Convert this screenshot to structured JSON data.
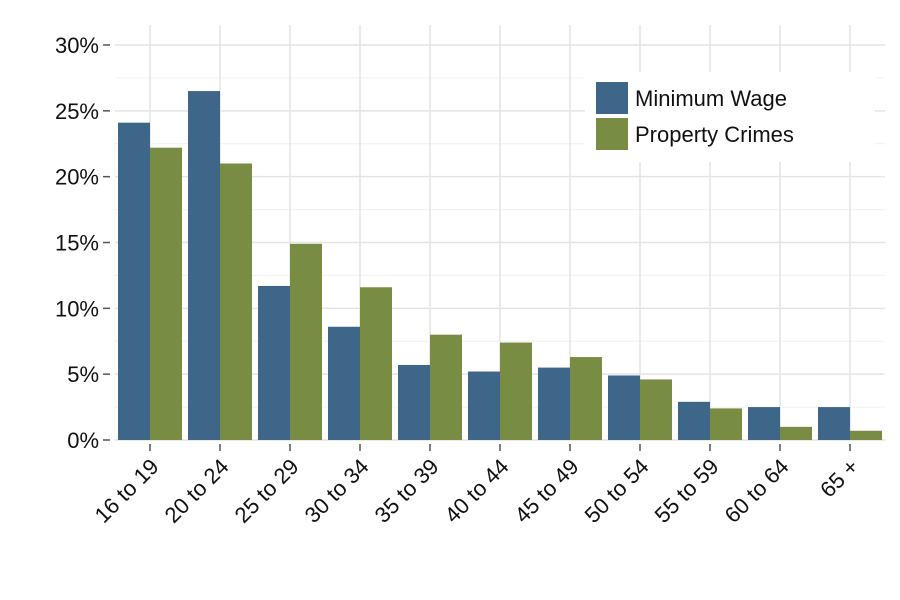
{
  "chart_data": {
    "type": "bar",
    "categories": [
      "16 to 19",
      "20 to 24",
      "25 to 29",
      "30 to 34",
      "35 to 39",
      "40 to 44",
      "45 to 49",
      "50 to 54",
      "55 to 59",
      "60 to 64",
      "65 +"
    ],
    "series": [
      {
        "name": "Minimum Wage",
        "color": "#3d6688",
        "values": [
          24.1,
          26.5,
          11.7,
          8.6,
          5.7,
          5.2,
          5.5,
          4.9,
          2.9,
          2.5,
          2.5
        ]
      },
      {
        "name": "Property Crimes",
        "color": "#788c44",
        "values": [
          22.2,
          21.0,
          14.9,
          11.6,
          8.0,
          7.4,
          6.3,
          4.6,
          2.4,
          1.0,
          0.7
        ]
      }
    ],
    "title": "",
    "xlabel": "",
    "ylabel": "",
    "ylim": [
      0,
      30
    ],
    "yticks": [
      "0%",
      "5%",
      "10%",
      "15%",
      "20%",
      "25%",
      "30%"
    ],
    "grid": true,
    "legend_position": "top-right"
  }
}
